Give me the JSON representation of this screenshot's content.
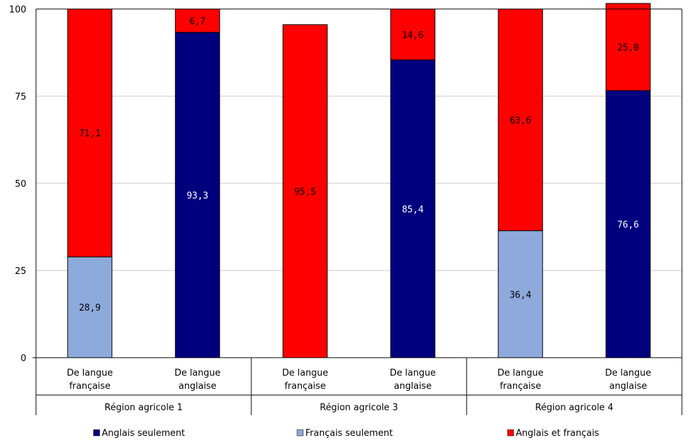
{
  "chart_data": {
    "type": "bar",
    "stacked": true,
    "ylim": [
      0,
      100
    ],
    "yticks": [
      0,
      25,
      50,
      75,
      100
    ],
    "grid": true,
    "legend_position": "bottom",
    "groups": [
      {
        "label": "Région agricole 1",
        "bars": [
          {
            "label_line1": "De langue",
            "label_line2": "française"
          },
          {
            "label_line1": "De langue",
            "label_line2": "anglaise"
          }
        ]
      },
      {
        "label": "Région agricole 3",
        "bars": [
          {
            "label_line1": "De langue",
            "label_line2": "française"
          },
          {
            "label_line1": "De langue",
            "label_line2": "anglaise"
          }
        ]
      },
      {
        "label": "Région agricole 4",
        "bars": [
          {
            "label_line1": "De langue",
            "label_line2": "française"
          },
          {
            "label_line1": "De langue",
            "label_line2": "anglaise"
          }
        ]
      }
    ],
    "series": [
      {
        "name": "Anglais seulement",
        "color": "#00007F",
        "label_color": "#FFFFFF",
        "values": [
          0,
          93.3,
          0,
          85.4,
          0,
          76.6
        ]
      },
      {
        "name": "Français seulement",
        "color": "#8EA9DB",
        "label_color": "#000000",
        "values": [
          28.9,
          0,
          0,
          0,
          36.4,
          0
        ]
      },
      {
        "name": "Anglais et français",
        "color": "#FF0000",
        "label_color": "#000000",
        "values": [
          71.1,
          6.7,
          95.5,
          14.6,
          63.6,
          25.0
        ]
      }
    ]
  }
}
